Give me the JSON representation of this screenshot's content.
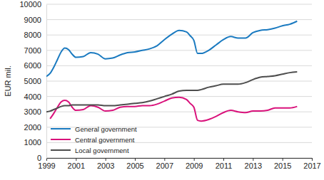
{
  "chart_data": {
    "type": "line",
    "ylabel": "EUR mil.",
    "x": [
      1999,
      1999.25,
      1999.5,
      1999.75,
      2000,
      2000.25,
      2000.5,
      2000.75,
      2001,
      2001.5,
      2002,
      2002.5,
      2003,
      2003.5,
      2004,
      2004.5,
      2005,
      2005.5,
      2006,
      2006.5,
      2007,
      2007.5,
      2008,
      2008.5,
      2008.75,
      2009,
      2009.25,
      2009.5,
      2010,
      2010.5,
      2011,
      2011.5,
      2012,
      2012.5,
      2013,
      2013.5,
      2014,
      2014.5,
      2015,
      2015.5,
      2016
    ],
    "series": [
      {
        "name": "General government",
        "color": "#1a7ac0",
        "values": [
          5300,
          5500,
          5900,
          6400,
          6900,
          7150,
          7050,
          6750,
          6550,
          6600,
          6850,
          6750,
          6450,
          6500,
          6700,
          6850,
          6900,
          7000,
          7100,
          7300,
          7700,
          8050,
          8300,
          8200,
          7950,
          7650,
          6800,
          6800,
          7000,
          7350,
          7700,
          7900,
          7800,
          7800,
          8150,
          8300,
          8350,
          8450,
          8600,
          8700,
          8900
        ]
      },
      {
        "name": "Central government",
        "color": "#d9127b",
        "values": [
          null,
          2550,
          2900,
          3300,
          3650,
          3750,
          3650,
          3300,
          3100,
          3150,
          3400,
          3300,
          3050,
          3100,
          3300,
          3350,
          3350,
          3400,
          3400,
          3500,
          3700,
          3900,
          3950,
          3800,
          3550,
          3300,
          2450,
          2400,
          2500,
          2700,
          2950,
          3100,
          3000,
          2950,
          3050,
          3050,
          3100,
          3250,
          3250,
          3250,
          3350
        ]
      },
      {
        "name": "Local government",
        "color": "#4d4d4d",
        "values": [
          3000,
          3050,
          3150,
          3250,
          3350,
          3400,
          3400,
          3450,
          3450,
          3450,
          3450,
          3450,
          3400,
          3400,
          3450,
          3500,
          3550,
          3600,
          3700,
          3850,
          4000,
          4150,
          4350,
          4400,
          4400,
          4400,
          4400,
          4450,
          4600,
          4700,
          4800,
          4800,
          4800,
          4900,
          5100,
          5250,
          5300,
          5350,
          5450,
          5550,
          5600
        ]
      }
    ],
    "xlim": [
      1999,
      2017
    ],
    "xticks": [
      1999,
      2001,
      2003,
      2005,
      2007,
      2009,
      2011,
      2013,
      2015,
      2017
    ],
    "ylim": [
      0,
      10000
    ],
    "yticks": [
      0,
      1000,
      2000,
      3000,
      4000,
      5000,
      6000,
      7000,
      8000,
      9000,
      10000
    ],
    "grid": true,
    "legend": "lower left"
  }
}
